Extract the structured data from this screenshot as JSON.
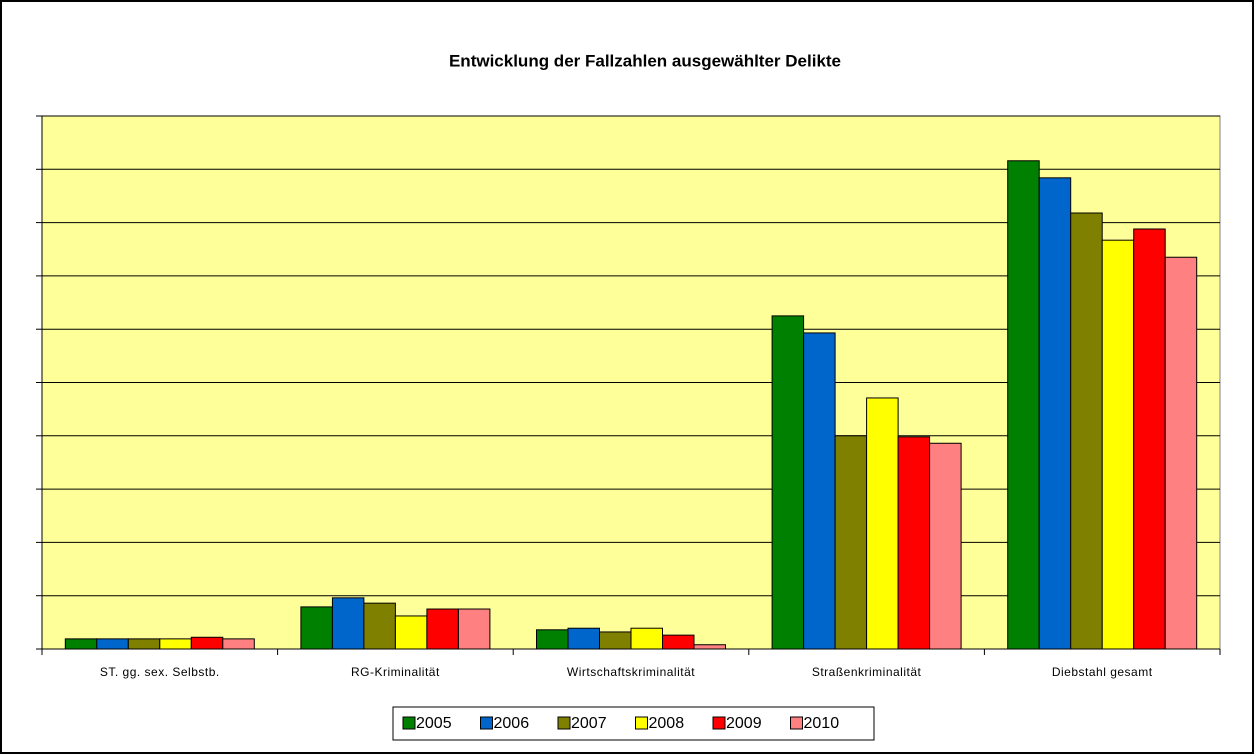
{
  "chart_data": {
    "type": "bar",
    "title": "Entwicklung der Fallzahlen ausgewählter Delikte",
    "categories": [
      "ST. gg. sex. Selbstb.",
      "RG-Kriminalität",
      "Wirtschaftskriminalität",
      "Straßenkriminalität",
      "Diebstahl gesamt"
    ],
    "series": [
      {
        "name": "2005",
        "color": "#008000",
        "values": [
          0.19,
          0.79,
          0.36,
          6.25,
          9.16
        ]
      },
      {
        "name": "2006",
        "color": "#0066cc",
        "values": [
          0.19,
          0.96,
          0.39,
          5.93,
          8.84
        ]
      },
      {
        "name": "2007",
        "color": "#808000",
        "values": [
          0.19,
          0.86,
          0.32,
          4.0,
          8.18
        ]
      },
      {
        "name": "2008",
        "color": "#ffff00",
        "values": [
          0.19,
          0.62,
          0.39,
          4.71,
          7.67
        ]
      },
      {
        "name": "2009",
        "color": "#ff0000",
        "values": [
          0.22,
          0.75,
          0.26,
          3.98,
          7.88
        ]
      },
      {
        "name": "2010",
        "color": "#ff8080",
        "values": [
          0.19,
          0.75,
          0.08,
          3.86,
          7.35
        ]
      }
    ],
    "ylim": [
      0,
      10
    ],
    "yticks": [
      0,
      1,
      2,
      3,
      4,
      5,
      6,
      7,
      8,
      9,
      10
    ],
    "show_tick_labels": false,
    "grid": true,
    "legend": "bottom",
    "background": "#ffff99"
  }
}
